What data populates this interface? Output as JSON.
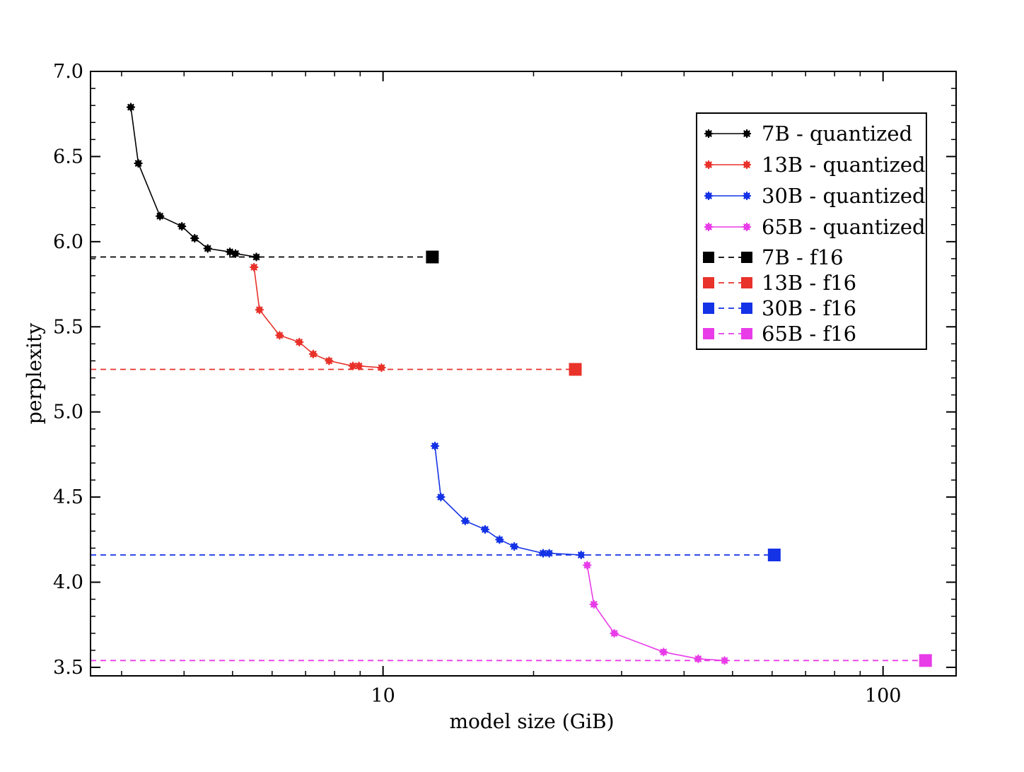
{
  "chart_data": {
    "type": "line",
    "title": "",
    "xlabel": "model size (GiB)",
    "ylabel": "perplexity",
    "xscale": "log",
    "xlim": [
      2.6,
      140
    ],
    "ylim": [
      3.45,
      7.0
    ],
    "xticks": [
      {
        "value": 10,
        "label": "10"
      },
      {
        "value": 100,
        "label": "100"
      }
    ],
    "yticks": [
      {
        "value": 3.5,
        "label": "3.5"
      },
      {
        "value": 4.0,
        "label": "4.0"
      },
      {
        "value": 4.5,
        "label": "4.5"
      },
      {
        "value": 5.0,
        "label": "5.0"
      },
      {
        "value": 5.5,
        "label": "5.5"
      },
      {
        "value": 6.0,
        "label": "6.0"
      },
      {
        "value": 6.5,
        "label": "6.5"
      },
      {
        "value": 7.0,
        "label": "7.0"
      }
    ],
    "grid": false,
    "legend_position": "top-right",
    "series": [
      {
        "name": "7B - quantized",
        "color": "#000000",
        "style": "solid-marker",
        "points": [
          [
            3.13,
            6.79
          ],
          [
            3.24,
            6.46
          ],
          [
            3.58,
            6.15
          ],
          [
            3.96,
            6.09
          ],
          [
            4.2,
            6.02
          ],
          [
            4.46,
            5.96
          ],
          [
            4.94,
            5.94
          ],
          [
            5.07,
            5.93
          ],
          [
            5.58,
            5.91
          ]
        ]
      },
      {
        "name": "13B - quantized",
        "color": "#e8322a",
        "style": "solid-marker",
        "points": [
          [
            5.52,
            5.85
          ],
          [
            5.66,
            5.6
          ],
          [
            6.21,
            5.45
          ],
          [
            6.8,
            5.41
          ],
          [
            7.25,
            5.34
          ],
          [
            7.8,
            5.3
          ],
          [
            8.7,
            5.27
          ],
          [
            8.95,
            5.27
          ],
          [
            9.93,
            5.26
          ]
        ]
      },
      {
        "name": "30B - quantized",
        "color": "#1432e6",
        "style": "solid-marker",
        "points": [
          [
            12.7,
            4.8
          ],
          [
            13.05,
            4.5
          ],
          [
            14.6,
            4.36
          ],
          [
            16.0,
            4.31
          ],
          [
            17.1,
            4.25
          ],
          [
            18.3,
            4.21
          ],
          [
            20.9,
            4.17
          ],
          [
            21.5,
            4.17
          ],
          [
            24.9,
            4.16
          ]
        ]
      },
      {
        "name": "65B - quantized",
        "color": "#e83ce8",
        "style": "solid-marker",
        "points": [
          [
            25.6,
            4.1
          ],
          [
            26.4,
            3.87
          ],
          [
            29.0,
            3.7
          ],
          [
            36.4,
            3.59
          ],
          [
            42.7,
            3.55
          ],
          [
            48.2,
            3.54
          ]
        ]
      },
      {
        "name": "7B - f16",
        "color": "#000000",
        "style": "dashed-square",
        "y": 5.91,
        "x_end": 12.55
      },
      {
        "name": "13B - f16",
        "color": "#e8322a",
        "style": "dashed-square",
        "y": 5.25,
        "x_end": 24.24
      },
      {
        "name": "30B - f16",
        "color": "#1432e6",
        "style": "dashed-square",
        "y": 4.16,
        "x_end": 60.59
      },
      {
        "name": "65B - f16",
        "color": "#e83ce8",
        "style": "dashed-square",
        "y": 3.54,
        "x_end": 121.6
      }
    ]
  }
}
